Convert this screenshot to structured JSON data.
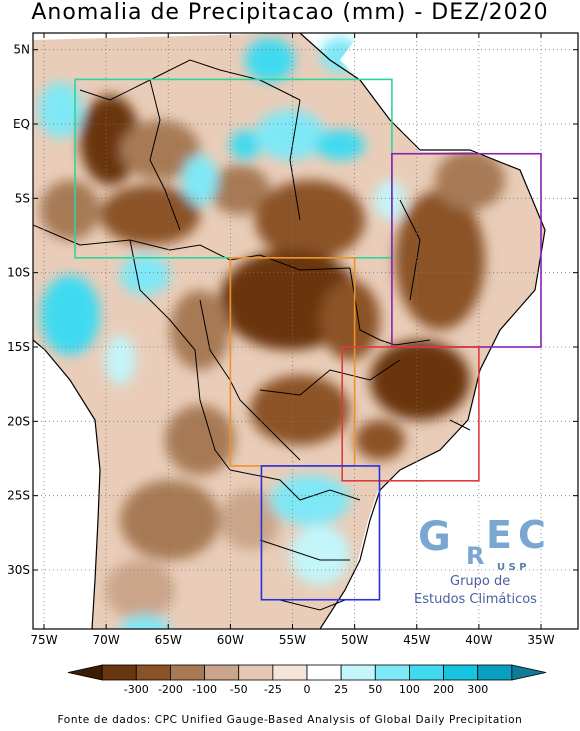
{
  "title": "Anomalia de Precipitacao (mm) - DEZ/2020",
  "source": "Fonte de dados: CPC Unified Gauge-Based Analysis of Global Daily Precipitation",
  "lat_labels": [
    {
      "lat": 5,
      "label": "5N"
    },
    {
      "lat": 0,
      "label": "EQ"
    },
    {
      "lat": -5,
      "label": "5S"
    },
    {
      "lat": -10,
      "label": "10S"
    },
    {
      "lat": -15,
      "label": "15S"
    },
    {
      "lat": -20,
      "label": "20S"
    },
    {
      "lat": -25,
      "label": "25S"
    },
    {
      "lat": -30,
      "label": "30S"
    }
  ],
  "lon_labels": [
    {
      "lon": -75,
      "label": "75W"
    },
    {
      "lon": -70,
      "label": "70W"
    },
    {
      "lon": -65,
      "label": "65W"
    },
    {
      "lon": -60,
      "label": "60W"
    },
    {
      "lon": -55,
      "label": "55W"
    },
    {
      "lon": -50,
      "label": "50W"
    },
    {
      "lon": -45,
      "label": "45W"
    },
    {
      "lon": -40,
      "label": "40W"
    },
    {
      "lon": -35,
      "label": "35W"
    }
  ],
  "colorbar": {
    "colors": [
      "#3b1d06",
      "#6a360f",
      "#8b5226",
      "#a77a55",
      "#caa58a",
      "#e6c9b5",
      "#f6e5d7",
      "#ffffff",
      "#c3f5fb",
      "#7fe8f6",
      "#3fdaf0",
      "#18c3e0",
      "#0a9fc0",
      "#0b7b98"
    ],
    "labels": [
      "-300",
      "-200",
      "-100",
      "-50",
      "-25",
      "0",
      "25",
      "50",
      "100",
      "200",
      "300"
    ]
  },
  "regions": [
    {
      "name": "north",
      "color": "#2ed59a",
      "lon_min": -72.5,
      "lon_max": -47,
      "lat_min": -9,
      "lat_max": 3
    },
    {
      "name": "northeast",
      "color": "#8a1fb5",
      "lon_min": -47,
      "lon_max": -35,
      "lat_min": -15,
      "lat_max": -2
    },
    {
      "name": "central-west",
      "color": "#f0922a",
      "lon_min": -60,
      "lon_max": -50,
      "lat_min": -23,
      "lat_max": -9
    },
    {
      "name": "southeast",
      "color": "#e03a3a",
      "lon_min": -51,
      "lon_max": -40,
      "lat_min": -24,
      "lat_max": -15
    },
    {
      "name": "south",
      "color": "#2432e0",
      "lon_min": -57.5,
      "lon_max": -48,
      "lat_min": -32,
      "lat_max": -23
    }
  ],
  "logo": {
    "letters": [
      "G",
      "R",
      "E",
      "C"
    ],
    "usp": "U S P",
    "line1": "Grupo de",
    "line2": "Estudos Climáticos"
  }
}
